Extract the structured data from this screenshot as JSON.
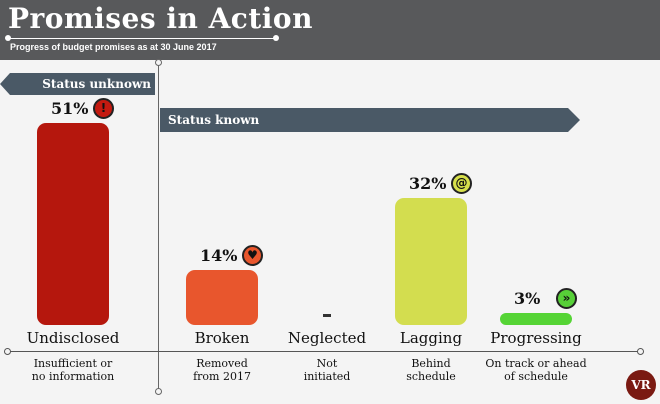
{
  "header": {
    "title": "Promises in Action",
    "subtitle": "Progress of budget promises as at 30 June 2017"
  },
  "banners": {
    "unknown": "Status unknown",
    "known": "Status known"
  },
  "logo_text": "VR",
  "chart_data": {
    "type": "bar",
    "title": "Promises in Action",
    "subtitle": "Progress of budget promises as at 30 June 2017",
    "categories": [
      "Undisclosed",
      "Broken",
      "Neglected",
      "Lagging",
      "Progressing"
    ],
    "values": [
      51,
      14,
      0,
      32,
      3
    ],
    "value_labels": [
      "51%",
      "14%",
      "-",
      "32%",
      "3%"
    ],
    "descriptions": [
      "Insufficient or\nno information",
      "Removed\nfrom 2017",
      "Not\ninitiated",
      "Behind\nschedule",
      "On track or ahead\nof schedule"
    ],
    "colors": [
      "#b5170d",
      "#e8562d",
      "#333333",
      "#d3dd4f",
      "#55d435"
    ],
    "badge_icons": [
      "exclamation-icon",
      "broken-heart-icon",
      null,
      "snail-icon",
      "fast-forward-icon"
    ],
    "badge_colors": [
      "#c41a10",
      "#e8562d",
      null,
      "#d7e04b",
      "#57d038"
    ],
    "groups": [
      {
        "name": "Status unknown",
        "categories": [
          "Undisclosed"
        ]
      },
      {
        "name": "Status known",
        "categories": [
          "Broken",
          "Neglected",
          "Lagging",
          "Progressing"
        ]
      }
    ],
    "ylim": [
      0,
      51
    ],
    "xlabel": "",
    "ylabel": "",
    "grid": false,
    "legend": "none"
  }
}
